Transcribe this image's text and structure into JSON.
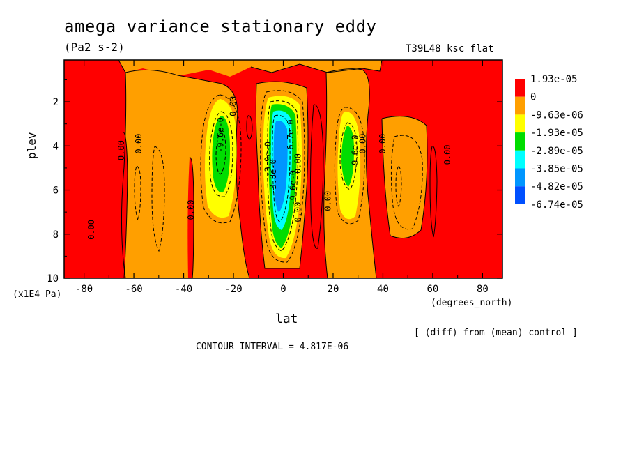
{
  "chart_data": {
    "type": "heatmap",
    "title": "amega variance stationary eddy",
    "subtitle": "(Pa2 s-2)",
    "run_name": "T39L48_ksc_flat",
    "xlabel": "lat",
    "x_units": "(degrees_north)",
    "ylabel": "plev",
    "y_units": "(x1E4 Pa)",
    "x_ticks": [
      "-80",
      "-60",
      "-40",
      "-20",
      "0",
      "20",
      "40",
      "60",
      "80"
    ],
    "y_ticks": [
      "2",
      "4",
      "6",
      "8",
      "10"
    ],
    "xlim": [
      -88,
      88
    ],
    "ylim": [
      0.1,
      10
    ],
    "contour_interval_text": "CONTOUR INTERVAL = 4.817E-06",
    "diff_note": "[ (diff) from (mean) control ]",
    "legend": {
      "position": "right",
      "labels": [
        "1.93e-05",
        "0",
        "-9.63e-06",
        "-1.93e-05",
        "-2.89e-05",
        "-3.85e-05",
        "-4.82e-05",
        "-6.74e-05"
      ],
      "colors": [
        "#ff0000",
        "#ff9f00",
        "#ffff00",
        "#00dd00",
        "#00ffff",
        "#0096ff",
        "#0050ff"
      ]
    },
    "contour_labels": [
      {
        "text": "0.00",
        "lat": -76,
        "plev": 7.8
      },
      {
        "text": "0.00",
        "lat": -64,
        "plev": 4.2
      },
      {
        "text": "0.00",
        "lat": -57,
        "plev": 3.9
      },
      {
        "text": "0.00",
        "lat": -36,
        "plev": 6.9
      },
      {
        "text": "-9.6e-0",
        "lat": -24,
        "plev": 3.5
      },
      {
        "text": "0.00",
        "lat": -19,
        "plev": 2.2
      },
      {
        "text": "-3.9e-0",
        "lat": -5,
        "plev": 4.6
      },
      {
        "text": "-3.8e-0",
        "lat": -3,
        "plev": 5.4
      },
      {
        "text": "-6.7e-0",
        "lat": 4,
        "plev": 3.6
      },
      {
        "text": "-9.6e-0",
        "lat": 5,
        "plev": 5.9
      },
      {
        "text": "0.00",
        "lat": 7,
        "plev": 4.8
      },
      {
        "text": "0.00",
        "lat": 7,
        "plev": 7.0
      },
      {
        "text": "0.00",
        "lat": 19,
        "plev": 6.5
      },
      {
        "text": "-9.6e-0",
        "lat": 30,
        "plev": 4.3
      },
      {
        "text": "0.00",
        "lat": 33,
        "plev": 3.9
      },
      {
        "text": "0.00",
        "lat": 41,
        "plev": 3.9
      },
      {
        "text": "0.00",
        "lat": 67,
        "plev": 4.4
      }
    ],
    "regions": [
      {
        "name": "red-background",
        "level": "1.93e-05"
      },
      {
        "name": "orange-band",
        "level": "0"
      },
      {
        "name": "sh-subtropical-minimum",
        "level": "-2.89e-05",
        "lat": -26,
        "plev": 4.5
      },
      {
        "name": "equatorial-minimum",
        "level": "-4.82e-05",
        "lat": -3,
        "plev": 5.0
      },
      {
        "name": "nh-subtropical-minimum",
        "level": "-2.89e-05",
        "lat": 26,
        "plev": 4.8
      }
    ]
  }
}
